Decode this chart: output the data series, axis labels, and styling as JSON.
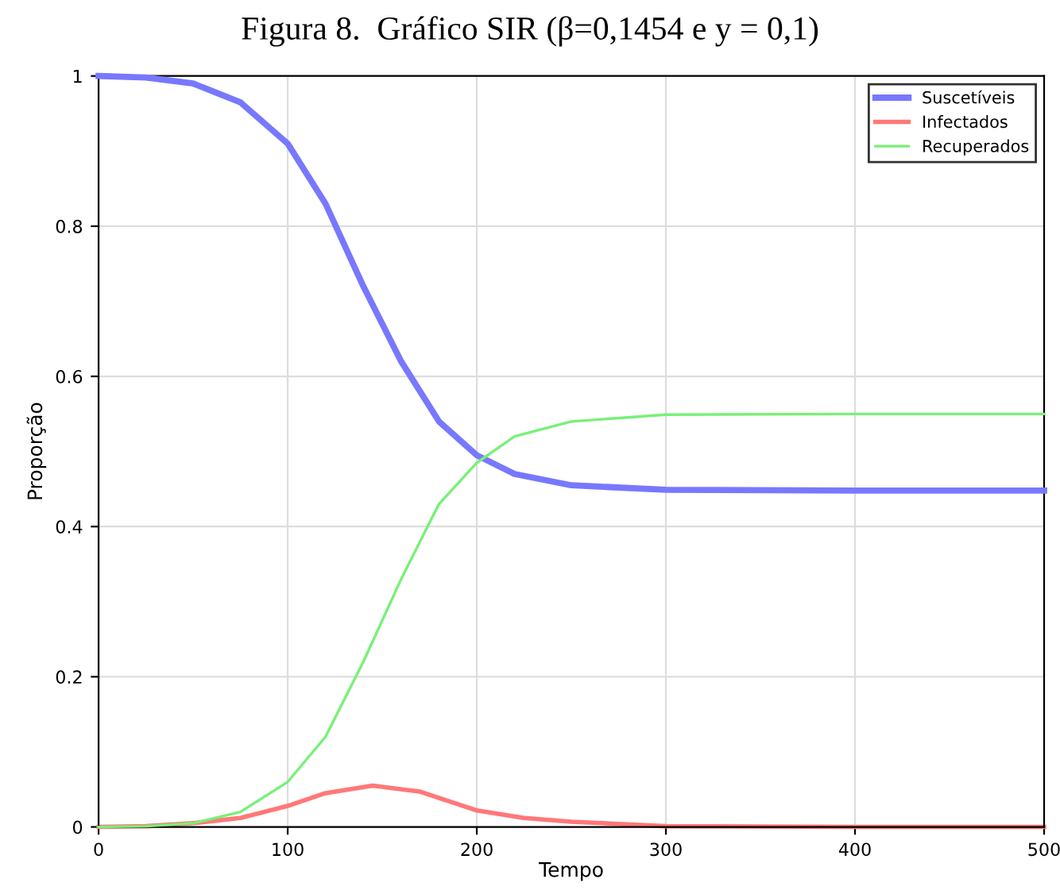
{
  "chart_data": {
    "type": "line",
    "title": "Figura 8.  Gráfico SIR (β=0,1454 e y = 0,1)",
    "xlabel": "Tempo",
    "ylabel": "Proporção",
    "series": [
      {
        "name": "Suscetíveis",
        "color": "#7878ff",
        "x": [
          0,
          25,
          50,
          75,
          100,
          120,
          140,
          160,
          180,
          200,
          220,
          250,
          300,
          400,
          500
        ],
        "values": [
          1.0,
          0.998,
          0.99,
          0.965,
          0.91,
          0.83,
          0.72,
          0.62,
          0.54,
          0.495,
          0.47,
          0.455,
          0.449,
          0.448,
          0.448
        ]
      },
      {
        "name": "Infectados",
        "color": "#ff7878",
        "x": [
          0,
          25,
          50,
          75,
          100,
          120,
          145,
          170,
          200,
          225,
          250,
          300,
          400,
          500
        ],
        "values": [
          0,
          0.001,
          0.005,
          0.012,
          0.028,
          0.045,
          0.055,
          0.047,
          0.022,
          0.012,
          0.007,
          0.001,
          0,
          0
        ]
      },
      {
        "name": "Recuperados",
        "color": "#78f078",
        "x": [
          0,
          25,
          50,
          75,
          100,
          120,
          140,
          160,
          180,
          200,
          220,
          250,
          300,
          400,
          500
        ],
        "values": [
          0,
          0.001,
          0.005,
          0.02,
          0.06,
          0.12,
          0.22,
          0.33,
          0.43,
          0.485,
          0.52,
          0.54,
          0.549,
          0.55,
          0.55
        ]
      }
    ],
    "xlim": [
      0,
      500
    ],
    "xticks": [
      0,
      100,
      200,
      300,
      400,
      500
    ],
    "ylim": [
      0,
      1
    ],
    "yticks": [
      0,
      0.2,
      0.4,
      0.6,
      0.8,
      1
    ],
    "grid": true,
    "legend": "top right"
  }
}
